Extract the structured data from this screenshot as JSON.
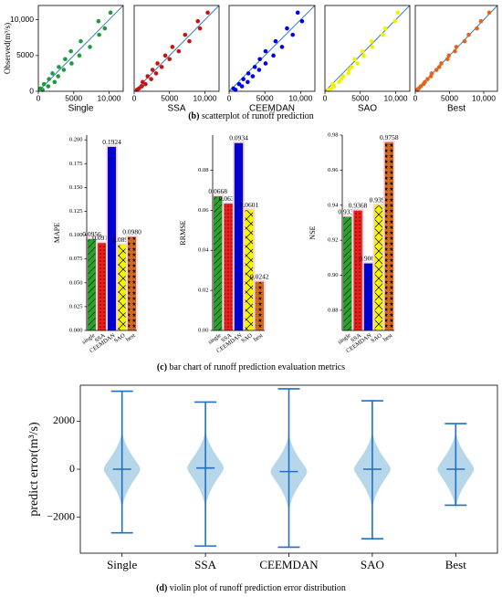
{
  "captions": [
    {
      "label": "(b)",
      "text": "scatterplot of runoff prediction"
    },
    {
      "label": "(c)",
      "text": "bar chart of runoff prediction evaluation metrics"
    },
    {
      "label": "(d)",
      "text": "violin plot of runoff prediction error distribution"
    }
  ],
  "chart_data": [
    {
      "type": "scatter",
      "x_label": "Single",
      "y_label": "Observed(m³/s)",
      "color": "#1e9a3c",
      "xlim": [
        0,
        12000
      ],
      "ylim": [
        0,
        12000
      ],
      "xticks": [
        0,
        5000,
        {
          "value": 10000,
          "label": "10,000"
        }
      ],
      "yticks": [
        0,
        5000,
        {
          "value": 10000,
          "label": "10,000"
        }
      ],
      "x": [
        600,
        300,
        1400,
        800,
        2300,
        1500,
        2800,
        2000,
        3600,
        2900,
        4700,
        3800,
        5800,
        4600,
        7300,
        6000,
        8600,
        9400,
        8500,
        10200
      ],
      "values": [
        200,
        400,
        700,
        1000,
        1300,
        1700,
        2100,
        2500,
        3000,
        3400,
        3900,
        4500,
        5000,
        5600,
        6200,
        7000,
        7900,
        8800,
        9800,
        11000
      ]
    },
    {
      "type": "scatter",
      "x_label": "SSA",
      "color": "#cc1111",
      "xlim": [
        0,
        12000
      ],
      "ylim": [
        0,
        12000
      ],
      "xticks": [
        0,
        5000,
        {
          "value": 10000,
          "label": "10,000"
        }
      ],
      "x": [
        400,
        700,
        1100,
        1600,
        1200,
        2400,
        1900,
        3100,
        2600,
        3900,
        3300,
        5000,
        4400,
        6300,
        5400,
        7800,
        7200,
        9300,
        9000,
        10400
      ],
      "values": [
        200,
        400,
        700,
        1000,
        1300,
        1700,
        2100,
        2500,
        3000,
        3400,
        3900,
        4500,
        5000,
        5600,
        6200,
        7000,
        7900,
        8800,
        9800,
        11000
      ]
    },
    {
      "type": "scatter",
      "x_label": "CEEMDAN",
      "color": "#0000ee",
      "xlim": [
        0,
        12000
      ],
      "ylim": [
        0,
        12000
      ],
      "xticks": [
        0,
        5000,
        {
          "value": 10000,
          "label": "10,000"
        }
      ],
      "x": [
        900,
        600,
        1800,
        1400,
        2600,
        2000,
        3300,
        2700,
        4200,
        3600,
        5100,
        4300,
        6200,
        5100,
        7400,
        6500,
        8900,
        8100,
        10200,
        9600
      ],
      "values": [
        200,
        400,
        700,
        1000,
        1300,
        1700,
        2100,
        2500,
        3000,
        3400,
        3900,
        4500,
        5000,
        5600,
        6200,
        7000,
        7900,
        8800,
        9800,
        11000
      ]
    },
    {
      "type": "scatter",
      "x_label": "SAO",
      "color": "#f2f200",
      "xlim": [
        0,
        12000
      ],
      "ylim": [
        0,
        12000
      ],
      "xticks": [
        0,
        5000,
        {
          "value": 10000,
          "label": "10,000"
        }
      ],
      "x": [
        500,
        900,
        1300,
        1100,
        2000,
        2300,
        2600,
        3300,
        3400,
        3800,
        4600,
        4200,
        5500,
        5300,
        6700,
        6600,
        8200,
        8500,
        9900,
        10300
      ],
      "values": [
        200,
        400,
        700,
        1000,
        1300,
        1700,
        2100,
        2500,
        3000,
        3400,
        3900,
        4500,
        5000,
        5600,
        6200,
        7000,
        7900,
        8800,
        9800,
        11000
      ]
    },
    {
      "type": "scatter",
      "x_label": "Best",
      "color": "#e0641e",
      "xlim": [
        0,
        12000
      ],
      "ylim": [
        0,
        12000
      ],
      "xticks": [
        0,
        5000,
        {
          "value": 10000,
          "label": "10,000"
        }
      ],
      "x": [
        300,
        500,
        800,
        1200,
        1400,
        1800,
        2300,
        2400,
        3100,
        3500,
        3800,
        4700,
        4900,
        5800,
        6000,
        7200,
        7800,
        9000,
        9600,
        10800
      ],
      "values": [
        200,
        400,
        700,
        1000,
        1300,
        1700,
        2100,
        2500,
        3000,
        3400,
        3900,
        4500,
        5000,
        5600,
        6200,
        7000,
        7900,
        8800,
        9800,
        11000
      ]
    },
    {
      "type": "bar",
      "y_label": "MAPE",
      "categories": [
        "single",
        "SSA",
        "CEEMDAN",
        "SAO",
        "best"
      ],
      "colors": [
        "#2ca02c",
        "#e8201a",
        "#0000cc",
        "#f5f500",
        "#d2691e"
      ],
      "values": [
        0.0956,
        0.0915,
        0.1924,
        0.0896,
        0.098
      ],
      "value_labels": [
        "0.0956",
        "0.0915",
        "0.1924",
        "0.0896",
        "0.0980"
      ],
      "ylim": [
        0,
        0.205
      ],
      "yticks": [
        {
          "value": 0,
          "label": "0.000"
        },
        {
          "value": 0.025,
          "label": "0.025"
        },
        {
          "value": 0.05,
          "label": "0.050"
        },
        {
          "value": 0.075,
          "label": "0.075"
        },
        {
          "value": 0.1,
          "label": "0.100"
        },
        {
          "value": 0.125,
          "label": "0.125"
        },
        {
          "value": 0.15,
          "label": "0.150"
        },
        {
          "value": 0.175,
          "label": "0.175"
        },
        {
          "value": 0.2,
          "label": "0.200"
        }
      ]
    },
    {
      "type": "bar",
      "y_label": "RRMSE",
      "categories": [
        "single",
        "SSA",
        "CEEMDAN",
        "SAO",
        "best"
      ],
      "colors": [
        "#2ca02c",
        "#e8201a",
        "#0000cc",
        "#f5f500",
        "#d2691e"
      ],
      "values": [
        0.0668,
        0.0632,
        0.0934,
        0.0601,
        0.0242
      ],
      "value_labels": [
        "0.0668",
        "0.0632",
        "0.0934",
        "0.0601",
        "0.0242"
      ],
      "ylim": [
        0,
        0.0975
      ],
      "yticks": [
        {
          "value": 0,
          "label": "0.00"
        },
        {
          "value": 0.02,
          "label": "0.02"
        },
        {
          "value": 0.04,
          "label": "0.04"
        },
        {
          "value": 0.06,
          "label": "0.06"
        },
        {
          "value": 0.08,
          "label": "0.08"
        }
      ]
    },
    {
      "type": "bar",
      "y_label": "NSE",
      "categories": [
        "single",
        "SSA",
        "CEEMDAN",
        "SAO",
        "best"
      ],
      "colors": [
        "#2ca02c",
        "#e8201a",
        "#0000cc",
        "#f5f500",
        "#d2691e"
      ],
      "values": [
        0.9332,
        0.9368,
        0.9066,
        0.9399,
        0.9758
      ],
      "value_labels": [
        "0.9332",
        "0.9368",
        "0.9066",
        "0.9399",
        "0.9758"
      ],
      "ylim": [
        0.8685,
        0.98
      ],
      "yticks": [
        0.88,
        {
          "value": 0.9,
          "label": "0.90"
        },
        0.92,
        0.94,
        0.96,
        0.98
      ]
    },
    {
      "type": "violin",
      "y_label": "predict error(m³/s)",
      "color": "#1f6fc4",
      "categories": [
        "Single",
        "SSA",
        "CEEMDAN",
        "SAO",
        "Best"
      ],
      "values": [
        0,
        50,
        -100,
        0,
        0
      ],
      "min": [
        -2650,
        -3200,
        -3250,
        -2900,
        -1500
      ],
      "max": [
        3250,
        2800,
        3350,
        2850,
        1900
      ],
      "ylim": [
        -3500,
        3500
      ],
      "yticks": [
        {
          "value": -2000,
          "label": "−2000"
        },
        0,
        2000
      ]
    }
  ]
}
